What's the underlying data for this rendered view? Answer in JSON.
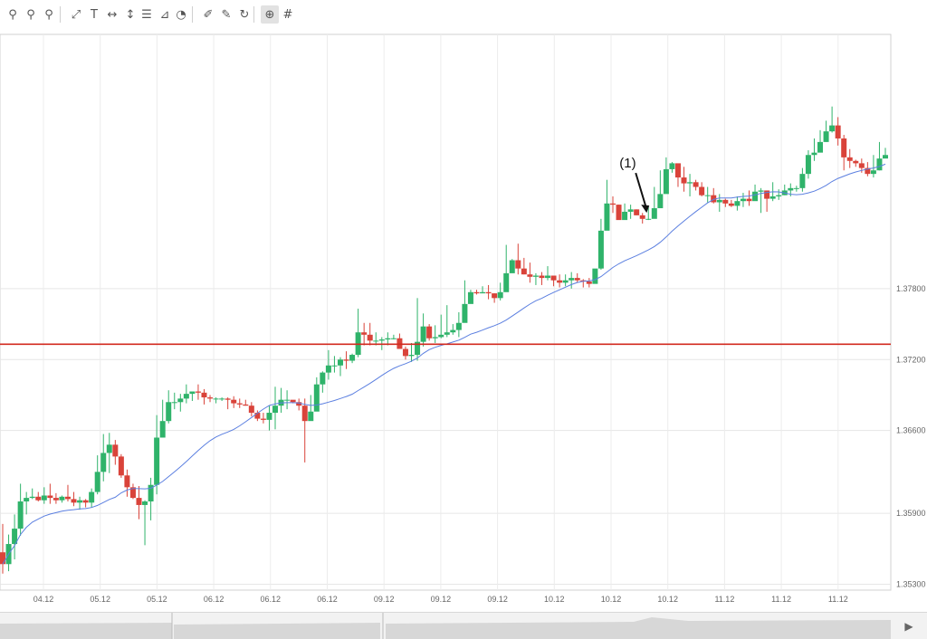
{
  "toolbar": {
    "tools": [
      {
        "name": "zoom-in-icon",
        "glyph": "⚲"
      },
      {
        "name": "zoom-out-icon",
        "glyph": "⚲"
      },
      {
        "name": "zoom-reset-icon",
        "glyph": "⚲"
      },
      {
        "name": "trendline-icon",
        "glyph": "⤢"
      },
      {
        "name": "text-tool-icon",
        "glyph": "T"
      },
      {
        "name": "horizontal-line-icon",
        "glyph": "↔"
      },
      {
        "name": "vertical-line-icon",
        "glyph": "↕"
      },
      {
        "name": "fibonacci-icon",
        "glyph": "☰"
      },
      {
        "name": "fan-icon",
        "glyph": "⊿"
      },
      {
        "name": "arc-icon",
        "glyph": "◔"
      },
      {
        "name": "eraser-icon",
        "glyph": "✐"
      },
      {
        "name": "erase-all-icon",
        "glyph": "✎"
      },
      {
        "name": "refresh-icon",
        "glyph": "↻"
      },
      {
        "name": "crosshair-icon",
        "glyph": "⊕"
      },
      {
        "name": "grid-icon",
        "glyph": "#"
      }
    ]
  },
  "chart_data": {
    "type": "candlestick",
    "ylim": [
      1.3525,
      1.3995
    ],
    "y_ticks": [
      "1.35300",
      "1.35900",
      "1.36600",
      "1.37200",
      "1.37800"
    ],
    "x_ticks": [
      "04.12",
      "05.12",
      "05.12",
      "06.12",
      "06.12",
      "06.12",
      "09.12",
      "09.12",
      "09.12",
      "10.12",
      "10.12",
      "10.12",
      "11.12",
      "11.12",
      "11.12"
    ],
    "horizontal_line": 1.3733,
    "annotation": "(1)",
    "annotation_candle": 109,
    "candles": [
      [
        1.3557,
        1.3547,
        1.3581,
        1.3539
      ],
      [
        1.3547,
        1.3564,
        1.3572,
        1.3541
      ],
      [
        1.3564,
        1.3577,
        1.3589,
        1.3551
      ],
      [
        1.3577,
        1.36,
        1.3615,
        1.3571
      ],
      [
        1.36,
        1.3603,
        1.3608,
        1.3589
      ],
      [
        1.3603,
        1.3604,
        1.3611,
        1.3602
      ],
      [
        1.3604,
        1.3601,
        1.3608,
        1.36
      ],
      [
        1.3601,
        1.3605,
        1.3612,
        1.3598
      ],
      [
        1.3605,
        1.3603,
        1.3615,
        1.3598
      ],
      [
        1.3603,
        1.3601,
        1.3607,
        1.3598
      ],
      [
        1.3601,
        1.3604,
        1.3605,
        1.3599
      ],
      [
        1.3604,
        1.3602,
        1.3614,
        1.36
      ],
      [
        1.3602,
        1.3599,
        1.3608,
        1.3596
      ],
      [
        1.3599,
        1.3601,
        1.3604,
        1.3593
      ],
      [
        1.3601,
        1.3599,
        1.3602,
        1.3595
      ],
      [
        1.3599,
        1.3608,
        1.3611,
        1.3595
      ],
      [
        1.3608,
        1.3625,
        1.3639,
        1.3606
      ],
      [
        1.3625,
        1.3641,
        1.3657,
        1.3617
      ],
      [
        1.3641,
        1.3648,
        1.3658,
        1.3624
      ],
      [
        1.3648,
        1.3638,
        1.3652,
        1.3631
      ],
      [
        1.3638,
        1.3622,
        1.364,
        1.362
      ],
      [
        1.3622,
        1.3612,
        1.3627,
        1.3604
      ],
      [
        1.3612,
        1.3603,
        1.3615,
        1.3602
      ],
      [
        1.3603,
        1.3597,
        1.3613,
        1.3585
      ],
      [
        1.3597,
        1.36,
        1.3601,
        1.3563
      ],
      [
        1.36,
        1.3614,
        1.362,
        1.3584
      ],
      [
        1.3614,
        1.3654,
        1.3673,
        1.3606
      ],
      [
        1.3654,
        1.3668,
        1.3686,
        1.3654
      ],
      [
        1.3668,
        1.3684,
        1.3694,
        1.3666
      ],
      [
        1.3684,
        1.3684,
        1.3692,
        1.3678
      ],
      [
        1.3684,
        1.3687,
        1.3691,
        1.3676
      ],
      [
        1.3687,
        1.3691,
        1.3699,
        1.3683
      ],
      [
        1.3691,
        1.3693,
        1.3693,
        1.3685
      ],
      [
        1.3693,
        1.3692,
        1.3699,
        1.3686
      ],
      [
        1.3692,
        1.3688,
        1.3695,
        1.3682
      ],
      [
        1.3688,
        1.3687,
        1.369,
        1.3684
      ],
      [
        1.3687,
        1.3687,
        1.3688,
        1.3683
      ],
      [
        1.3687,
        1.3687,
        1.3688,
        1.3685
      ],
      [
        1.3687,
        1.3686,
        1.3688,
        1.3678
      ],
      [
        1.3686,
        1.3683,
        1.3689,
        1.3679
      ],
      [
        1.3683,
        1.3682,
        1.3687,
        1.3679
      ],
      [
        1.3682,
        1.3681,
        1.3686,
        1.3681
      ],
      [
        1.3681,
        1.3675,
        1.3684,
        1.3672
      ],
      [
        1.3675,
        1.367,
        1.3677,
        1.3668
      ],
      [
        1.367,
        1.3669,
        1.3675,
        1.3666
      ],
      [
        1.3669,
        1.3675,
        1.3681,
        1.366
      ],
      [
        1.3675,
        1.3681,
        1.3697,
        1.3661
      ],
      [
        1.3681,
        1.3686,
        1.3696,
        1.3675
      ],
      [
        1.3686,
        1.3686,
        1.3694,
        1.3678
      ],
      [
        1.3686,
        1.3684,
        1.3685,
        1.3683
      ],
      [
        1.3684,
        1.3681,
        1.3687,
        1.3677
      ],
      [
        1.3681,
        1.3668,
        1.3687,
        1.3633
      ],
      [
        1.3668,
        1.3676,
        1.369,
        1.3673
      ],
      [
        1.3676,
        1.3699,
        1.3705,
        1.3677
      ],
      [
        1.3699,
        1.3709,
        1.371,
        1.3692
      ],
      [
        1.3709,
        1.3715,
        1.3728,
        1.3703
      ],
      [
        1.3715,
        1.3715,
        1.3723,
        1.3709
      ],
      [
        1.3715,
        1.372,
        1.3722,
        1.3706
      ],
      [
        1.372,
        1.3719,
        1.3727,
        1.3712
      ],
      [
        1.3719,
        1.3724,
        1.3725,
        1.3717
      ],
      [
        1.3724,
        1.3743,
        1.3763,
        1.3722
      ],
      [
        1.3743,
        1.3741,
        1.3751,
        1.3732
      ],
      [
        1.3741,
        1.3736,
        1.3751,
        1.3732
      ],
      [
        1.3736,
        1.3736,
        1.3743,
        1.3732
      ],
      [
        1.3736,
        1.3737,
        1.3739,
        1.3728
      ],
      [
        1.3737,
        1.3738,
        1.3743,
        1.3732
      ],
      [
        1.3738,
        1.3738,
        1.3741,
        1.3737
      ],
      [
        1.3738,
        1.3729,
        1.3742,
        1.3729
      ],
      [
        1.3729,
        1.3723,
        1.3731,
        1.372
      ],
      [
        1.3723,
        1.3724,
        1.3734,
        1.3718
      ],
      [
        1.3724,
        1.3735,
        1.3772,
        1.3719
      ],
      [
        1.3735,
        1.3748,
        1.3759,
        1.3731
      ],
      [
        1.3748,
        1.3738,
        1.375,
        1.3736
      ],
      [
        1.3738,
        1.3739,
        1.3749,
        1.3734
      ],
      [
        1.3739,
        1.3741,
        1.3758,
        1.3738
      ],
      [
        1.3741,
        1.3743,
        1.3766,
        1.3739
      ],
      [
        1.3743,
        1.3745,
        1.375,
        1.3741
      ],
      [
        1.3745,
        1.3751,
        1.376,
        1.3739
      ],
      [
        1.3751,
        1.3767,
        1.3787,
        1.3765
      ],
      [
        1.3767,
        1.3777,
        1.3779,
        1.3772
      ],
      [
        1.3777,
        1.3776,
        1.3779,
        1.3775
      ],
      [
        1.3776,
        1.3777,
        1.3782,
        1.3776
      ],
      [
        1.3777,
        1.3776,
        1.3783,
        1.3771
      ],
      [
        1.3776,
        1.3772,
        1.3776,
        1.3768
      ],
      [
        1.3772,
        1.3777,
        1.3785,
        1.377
      ],
      [
        1.3777,
        1.3793,
        1.3817,
        1.3786
      ],
      [
        1.3793,
        1.3804,
        1.3805,
        1.3799
      ],
      [
        1.3804,
        1.3797,
        1.3818,
        1.3792
      ],
      [
        1.3797,
        1.3792,
        1.3806,
        1.3792
      ],
      [
        1.3792,
        1.379,
        1.3802,
        1.3785
      ],
      [
        1.379,
        1.3791,
        1.3793,
        1.3783
      ],
      [
        1.3791,
        1.3789,
        1.3794,
        1.3783
      ],
      [
        1.3789,
        1.3791,
        1.3799,
        1.3787
      ],
      [
        1.3791,
        1.3787,
        1.379,
        1.3782
      ],
      [
        1.3787,
        1.3785,
        1.3792,
        1.3781
      ],
      [
        1.3785,
        1.3787,
        1.3792,
        1.3782
      ],
      [
        1.3787,
        1.3789,
        1.3794,
        1.378
      ],
      [
        1.3789,
        1.3787,
        1.3793,
        1.3785
      ],
      [
        1.3787,
        1.3786,
        1.3788,
        1.3781
      ],
      [
        1.3786,
        1.3784,
        1.3789,
        1.3781
      ],
      [
        1.3784,
        1.3797,
        1.3796,
        1.3789
      ],
      [
        1.3797,
        1.3829,
        1.3839,
        1.3796
      ],
      [
        1.3829,
        1.3852,
        1.3872,
        1.3849
      ],
      [
        1.3852,
        1.3851,
        1.3858,
        1.3844
      ],
      [
        1.3851,
        1.3838,
        1.3851,
        1.3842
      ],
      [
        1.3838,
        1.3845,
        1.3852,
        1.3843
      ],
      [
        1.3845,
        1.3847,
        1.3851,
        1.3839
      ],
      [
        1.3847,
        1.3842,
        1.3847,
        1.3842
      ],
      [
        1.3842,
        1.3839,
        1.3844,
        1.3835
      ],
      [
        1.3839,
        1.3839,
        1.3849,
        1.3838
      ],
      [
        1.3839,
        1.3848,
        1.3866,
        1.3841
      ],
      [
        1.3848,
        1.386,
        1.388,
        1.3854
      ],
      [
        1.386,
        1.3881,
        1.3891,
        1.3867
      ],
      [
        1.3881,
        1.3886,
        1.3887,
        1.3878
      ],
      [
        1.3886,
        1.3874,
        1.3882,
        1.3866
      ],
      [
        1.3874,
        1.3869,
        1.3883,
        1.3862
      ],
      [
        1.3869,
        1.387,
        1.3877,
        1.3858
      ],
      [
        1.387,
        1.3866,
        1.3872,
        1.3863
      ],
      [
        1.3866,
        1.3859,
        1.387,
        1.3858
      ],
      [
        1.3859,
        1.3859,
        1.3866,
        1.3853
      ],
      [
        1.3859,
        1.3853,
        1.3865,
        1.3852
      ],
      [
        1.3853,
        1.3855,
        1.386,
        1.3845
      ],
      [
        1.3855,
        1.3852,
        1.3856,
        1.3849
      ],
      [
        1.3852,
        1.385,
        1.3855,
        1.3849
      ],
      [
        1.385,
        1.3854,
        1.3858,
        1.3846
      ],
      [
        1.3854,
        1.3856,
        1.3861,
        1.3849
      ],
      [
        1.3856,
        1.3854,
        1.3863,
        1.385
      ],
      [
        1.3854,
        1.3862,
        1.3868,
        1.3855
      ],
      [
        1.3862,
        1.3863,
        1.3865,
        1.3844
      ],
      [
        1.3863,
        1.3856,
        1.3863,
        1.3845
      ],
      [
        1.3856,
        1.3858,
        1.387,
        1.3854
      ],
      [
        1.3858,
        1.3859,
        1.3864,
        1.3855
      ],
      [
        1.3859,
        1.3863,
        1.3868,
        1.3859
      ],
      [
        1.3863,
        1.3865,
        1.3869,
        1.3858
      ],
      [
        1.3865,
        1.3865,
        1.3867,
        1.3862
      ],
      [
        1.3865,
        1.3877,
        1.3882,
        1.3862
      ],
      [
        1.3877,
        1.3893,
        1.3897,
        1.3873
      ],
      [
        1.3893,
        1.3895,
        1.3907,
        1.3888
      ],
      [
        1.3895,
        1.3904,
        1.3914,
        1.3899
      ],
      [
        1.3904,
        1.3913,
        1.3922,
        1.3904
      ],
      [
        1.3913,
        1.3918,
        1.3934,
        1.3912
      ],
      [
        1.3918,
        1.3907,
        1.3925,
        1.3901
      ],
      [
        1.3907,
        1.3891,
        1.391,
        1.388
      ],
      [
        1.3891,
        1.3888,
        1.3898,
        1.3882
      ],
      [
        1.3888,
        1.3886,
        1.3889,
        1.3883
      ],
      [
        1.3886,
        1.3882,
        1.389,
        1.3878
      ],
      [
        1.3882,
        1.3877,
        1.3887,
        1.3875
      ],
      [
        1.3877,
        1.388,
        1.3893,
        1.3874
      ],
      [
        1.388,
        1.389,
        1.3904,
        1.388
      ],
      [
        1.389,
        1.3893,
        1.3899,
        1.3891
      ]
    ],
    "sma_1": [
      1.3591
    ],
    "sma_2": [
      1.3588
    ]
  }
}
